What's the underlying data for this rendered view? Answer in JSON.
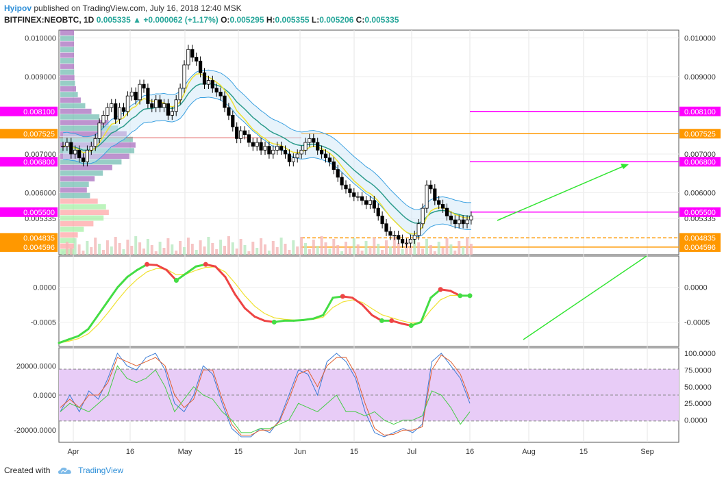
{
  "header": {
    "author": "Hyipov",
    "published": "published on TradingView.com, July 16, 2018 12:40 MSK"
  },
  "ticker": {
    "symbol": "BITFINEX:NEOBTC, 1D",
    "last": "0.005335",
    "change": "+0.000062 (+1.17%)",
    "open_label": "O:",
    "open": "0.005295",
    "high_label": "H:",
    "high": "0.005355",
    "low_label": "L:",
    "low": "0.005206",
    "close_label": "C:",
    "close": "0.005335"
  },
  "footer": {
    "created_with": "Created with",
    "brand": "TradingView"
  },
  "colors": {
    "magenta": "#ff00ff",
    "orange": "#ff9800",
    "green_arrow": "#33e533",
    "bull_candle": "#ffffff",
    "bear_candle": "#000000"
  },
  "chart_data": [
    {
      "type": "candlestick",
      "panel": "price",
      "x_ticks": [
        "Apr",
        "16",
        "May",
        "15",
        "Jun",
        "15",
        "Jul",
        "16",
        "Aug",
        "15",
        "Sep"
      ],
      "y_ticks": [
        "0.010000",
        "0.009000",
        "0.007000",
        "0.006000",
        "0.005335"
      ],
      "ylim": [
        0.0044,
        0.0102
      ],
      "price_labels": [
        {
          "value": 0.0081,
          "text": "0.008100",
          "color": "#ff00ff"
        },
        {
          "value": 0.007525,
          "text": "0.007525",
          "color": "#ff9800"
        },
        {
          "value": 0.0068,
          "text": "0.006800",
          "color": "#ff00ff"
        },
        {
          "value": 0.0055,
          "text": "0.005500",
          "color": "#ff00ff"
        },
        {
          "value": 0.004835,
          "text": "0.004835",
          "color": "#ff9800"
        },
        {
          "value": 0.004596,
          "text": "0.004596",
          "color": "#ff9800"
        }
      ],
      "close": [
        0.0072,
        0.0073,
        0.007,
        0.0071,
        0.0069,
        0.0068,
        0.0071,
        0.0072,
        0.0074,
        0.0078,
        0.008,
        0.0082,
        0.0083,
        0.0079,
        0.0082,
        0.0081,
        0.0085,
        0.0086,
        0.0084,
        0.0088,
        0.0087,
        0.0083,
        0.0082,
        0.0084,
        0.0082,
        0.0083,
        0.008,
        0.0081,
        0.0084,
        0.0087,
        0.0093,
        0.0097,
        0.0095,
        0.0094,
        0.0091,
        0.0088,
        0.0089,
        0.0087,
        0.0086,
        0.0085,
        0.0082,
        0.008,
        0.0077,
        0.0074,
        0.0076,
        0.0075,
        0.0073,
        0.0072,
        0.0073,
        0.0071,
        0.0072,
        0.007,
        0.0071,
        0.0072,
        0.0071,
        0.007,
        0.0068,
        0.0069,
        0.007,
        0.0071,
        0.0073,
        0.0074,
        0.0073,
        0.0071,
        0.007,
        0.0069,
        0.0068,
        0.0066,
        0.0064,
        0.0062,
        0.0061,
        0.006,
        0.0059,
        0.0059,
        0.0058,
        0.0057,
        0.0058,
        0.0056,
        0.0054,
        0.0052,
        0.005,
        0.0049,
        0.0049,
        0.0048,
        0.0047,
        0.0047,
        0.0048,
        0.0049,
        0.0052,
        0.0056,
        0.0062,
        0.0061,
        0.0058,
        0.0057,
        0.0056,
        0.0054,
        0.0053,
        0.0052,
        0.0053,
        0.0052,
        0.0053,
        0.0054
      ],
      "volume_profile": true
    },
    {
      "type": "line",
      "panel": "oscillator",
      "y_ticks": [
        "0.0000",
        "-0.0005"
      ],
      "ylim": [
        -0.00085,
        0.00045
      ],
      "series": [
        {
          "values": [
            -0.0008,
            -0.00075,
            -0.0007,
            -0.0006,
            -0.0004,
            -0.0002,
            0.0,
            0.00015,
            0.00025,
            0.00033,
            0.00032,
            0.00025,
            0.0001,
            0.0002,
            0.0003,
            0.00033,
            0.0003,
            0.00015,
            -0.0001,
            -0.0003,
            -0.00042,
            -0.00048,
            -0.0005,
            -0.00048,
            -0.00048,
            -0.00047,
            -0.00045,
            -0.0004,
            -0.00015,
            -0.00013,
            -0.00015,
            -0.00025,
            -0.0004,
            -0.00048,
            -0.00048,
            -0.00052,
            -0.00055,
            -0.0005,
            -0.00015,
            -3e-05,
            -5e-05,
            -0.00012,
            -0.00012
          ]
        }
      ]
    },
    {
      "type": "line",
      "panel": "stochastic",
      "y_ticks_left": [
        "20000.0000",
        "0.0000",
        "-20000.0000"
      ],
      "y_ticks_right": [
        "100.0000",
        "75.0000",
        "50.0000",
        "25.0000",
        "0.0000"
      ],
      "ylim": [
        0,
        100
      ],
      "bands": [
        25,
        75
      ],
      "series": [
        {
          "values": [
            30,
            50,
            30,
            55,
            45,
            70,
            100,
            85,
            80,
            95,
            100,
            80,
            40,
            30,
            50,
            85,
            75,
            40,
            10,
            0,
            0,
            10,
            5,
            20,
            50,
            80,
            75,
            50,
            90,
            100,
            90,
            70,
            30,
            5,
            0,
            5,
            10,
            5,
            15,
            90,
            100,
            85,
            70,
            40
          ]
        },
        {
          "values": [
            35,
            45,
            35,
            50,
            50,
            65,
            95,
            90,
            85,
            90,
            95,
            85,
            50,
            35,
            45,
            80,
            80,
            45,
            15,
            2,
            2,
            8,
            8,
            18,
            45,
            75,
            80,
            60,
            85,
            95,
            95,
            75,
            40,
            10,
            2,
            3,
            8,
            8,
            12,
            80,
            98,
            90,
            75,
            45
          ]
        },
        {
          "values": [
            30,
            40,
            35,
            30,
            40,
            50,
            85,
            70,
            65,
            70,
            80,
            60,
            30,
            45,
            60,
            50,
            45,
            30,
            20,
            5,
            5,
            10,
            10,
            15,
            20,
            40,
            35,
            30,
            40,
            50,
            30,
            30,
            25,
            30,
            20,
            15,
            20,
            20,
            25,
            55,
            50,
            35,
            15,
            30
          ]
        }
      ]
    }
  ]
}
